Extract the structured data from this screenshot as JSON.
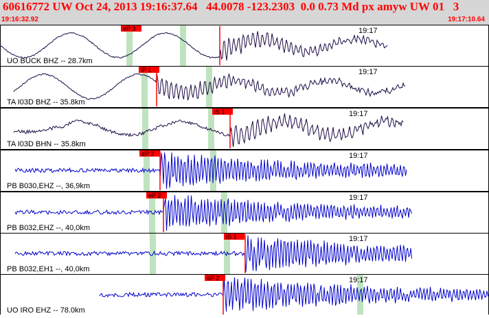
{
  "header": {
    "title": "60616772 UW Oct 24, 2013 19:16:37.64   44.0078 -123.2303  0.0 0.73 Md px amyw UW 01   3",
    "time_start": "19:16:32.92",
    "time_end": "19:17:10.64"
  },
  "colors": {
    "header_bg": "#d6d6d6",
    "header_text": "#ff0000",
    "trace_vertical": "#1a0a44",
    "trace_horizontal": "#0000cc",
    "pick_box": "#ff0000",
    "window_band": "#bfe3bf",
    "panel_border": "#000000"
  },
  "traces": [
    {
      "id": "trace-uo-buck-bhz",
      "label": "UO BUCK BHZ -- 28.7km",
      "time_label": "19:17",
      "pick_label": "eP 3",
      "color": "#1a0a44",
      "style": "slow"
    },
    {
      "id": "trace-ta-i03d-bhz",
      "label": "TA I03D BHZ -- 35.8km",
      "time_label": "19:17",
      "pick_label": "iP 1",
      "color": "#1a0a44",
      "style": "slow"
    },
    {
      "id": "trace-ta-i03d-bhn",
      "label": "TA I03D BHN -- 35.8km",
      "time_label": "19:17",
      "pick_label": "iS 1",
      "color": "#1a0a44",
      "style": "mixed"
    },
    {
      "id": "trace-pb-b030-ehz",
      "label": "PB B030,EHZ --, 36,9km",
      "time_label": "19:17",
      "pick_label": "eP 2",
      "color": "#0000cc",
      "style": "fast"
    },
    {
      "id": "trace-pb-b032-ehz",
      "label": "PB B032,EHZ --, 40,0km",
      "time_label": "19:17",
      "pick_label": "eP 2",
      "color": "#0000cc",
      "style": "fast"
    },
    {
      "id": "trace-pb-b032-eh1",
      "label": "PB B032,EH1 --, 40,0km",
      "time_label": "19:17",
      "pick_label": "iS 1",
      "color": "#0000cc",
      "style": "fast"
    },
    {
      "id": "trace-uo-iro-ehz",
      "label": "UO IRO EHZ -- 78.0km",
      "time_label": "19:17",
      "pick_label": "eP 2",
      "color": "#0000cc",
      "style": "fast"
    }
  ]
}
